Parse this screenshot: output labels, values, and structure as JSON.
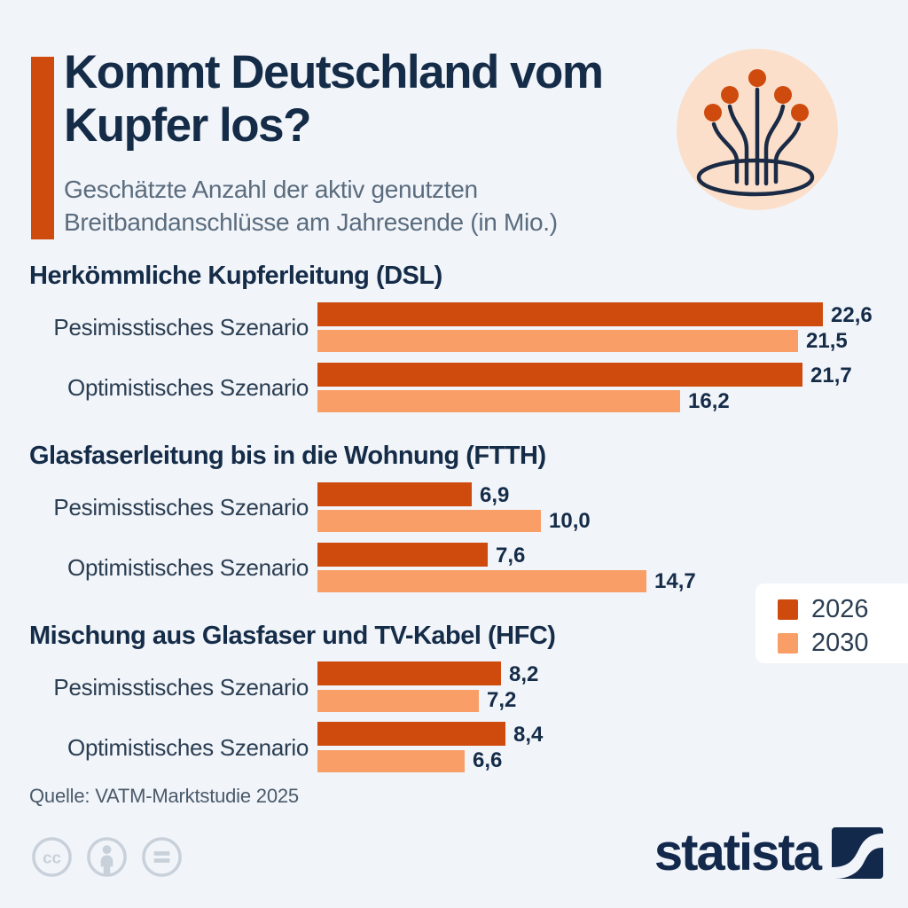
{
  "header": {
    "title": "Kommt Deutschland vom Kupfer los?",
    "subtitle": "Geschätzte Anzahl der aktiv genutzten Breitbandanschlüsse am Jahresende (in Mio.)",
    "accent_color": "#CE4B0D",
    "icon": "fiber-optic-bundle-icon",
    "icon_bg_color": "#FBDFCA"
  },
  "chart_data": {
    "type": "bar",
    "orientation": "horizontal",
    "unit": "Mio.",
    "decimal_separator": ",",
    "max_value": 22.6,
    "legend_position": "right",
    "series": [
      "2026",
      "2030"
    ],
    "colors": [
      "#CE4B0D",
      "#F99E66"
    ],
    "legend": [
      {
        "label": "2026",
        "color": "#CE4B0D"
      },
      {
        "label": "2030",
        "color": "#F99E66"
      }
    ],
    "groups": [
      {
        "heading": "Herkömmliche Kupferleitung (DSL)",
        "rows": [
          {
            "label": "Pesimisstisches Szenario",
            "values": [
              22.6,
              21.5
            ],
            "display": [
              "22,6",
              "21,5"
            ]
          },
          {
            "label": "Optimistisches Szenario",
            "values": [
              21.7,
              16.2
            ],
            "display": [
              "21,7",
              "16,2"
            ]
          }
        ]
      },
      {
        "heading": "Glasfaserleitung bis in die Wohnung (FTTH)",
        "rows": [
          {
            "label": "Pesimisstisches Szenario",
            "values": [
              6.9,
              10.0
            ],
            "display": [
              "6,9",
              "10,0"
            ]
          },
          {
            "label": "Optimistisches Szenario",
            "values": [
              7.6,
              14.7
            ],
            "display": [
              "7,6",
              "14,7"
            ]
          }
        ]
      },
      {
        "heading": "Mischung aus Glasfaser und TV-Kabel (HFC)",
        "rows": [
          {
            "label": "Pesimisstisches Szenario",
            "values": [
              8.2,
              7.2
            ],
            "display": [
              "8,2",
              "7,2"
            ]
          },
          {
            "label": "Optimistisches Szenario",
            "values": [
              8.4,
              6.6
            ],
            "display": [
              "8,4",
              "6,6"
            ]
          }
        ]
      }
    ]
  },
  "footer": {
    "source": "Quelle: VATM-Marktstudie 2025",
    "cc_icons": [
      "cc-icon",
      "cc-by-person-icon",
      "cc-nd-equals-icon"
    ],
    "brand": "statista"
  }
}
